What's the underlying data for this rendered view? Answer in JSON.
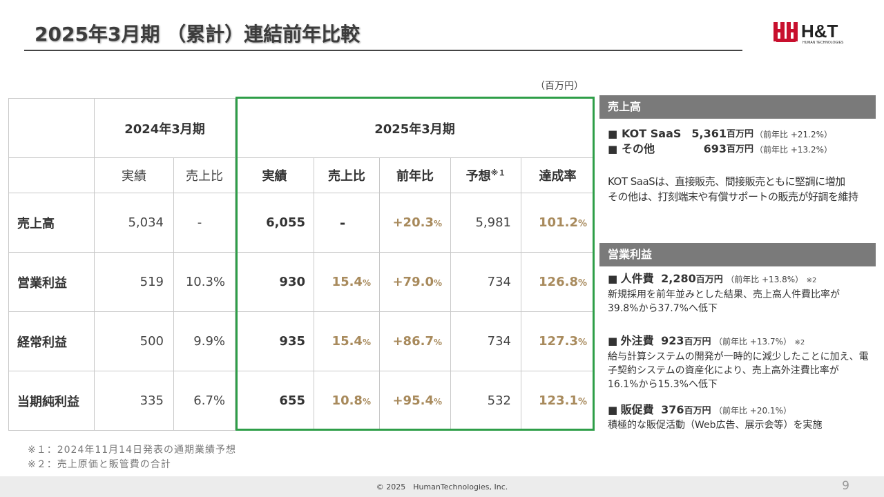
{
  "title": "2025年3月期 （累計）連結前年比較",
  "logo": {
    "text": "H&T",
    "sub": "HUMAN TECHNOLOGIES"
  },
  "unit": "（百万円）",
  "table": {
    "year_prev": "2024年3月期",
    "year_curr": "2025年3月期",
    "sub": {
      "actual": "実績",
      "ratio": "売上比",
      "actual2": "実績",
      "ratio2": "売上比",
      "yoy": "前年比",
      "forecast": "予想",
      "forecast_note": "※１",
      "achieve": "達成率"
    },
    "rows": [
      {
        "label": "売上高",
        "prev_actual": "5,034",
        "prev_ratio": "-",
        "actual": "6,055",
        "ratio": "-",
        "ratio_pct": "",
        "yoy": "+20.3",
        "yoy_pct": "%",
        "forecast": "5,981",
        "achieve": "101.2",
        "achieve_pct": "%"
      },
      {
        "label": "営業利益",
        "prev_actual": "519",
        "prev_ratio": "10.3%",
        "actual": "930",
        "ratio": "15.4",
        "ratio_pct": "%",
        "yoy": "+79.0",
        "yoy_pct": "%",
        "forecast": "734",
        "achieve": "126.8",
        "achieve_pct": "%"
      },
      {
        "label": "経常利益",
        "prev_actual": "500",
        "prev_ratio": "9.9%",
        "actual": "935",
        "ratio": "15.4",
        "ratio_pct": "%",
        "yoy": "+86.7",
        "yoy_pct": "%",
        "forecast": "734",
        "achieve": "127.3",
        "achieve_pct": "%"
      },
      {
        "label": "当期純利益",
        "prev_actual": "335",
        "prev_ratio": "6.7%",
        "actual": "655",
        "ratio": "10.8",
        "ratio_pct": "%",
        "yoy": "+95.4",
        "yoy_pct": "%",
        "forecast": "532",
        "achieve": "123.1",
        "achieve_pct": "%"
      }
    ]
  },
  "footnotes": {
    "n1": "※１：2024年11月14日発表の通期業績予想",
    "n2": "※２：売上原価と販管費の合計"
  },
  "sales_panel": {
    "header": "売上高",
    "items": [
      {
        "bullet": "■",
        "name": "KOT SaaS",
        "value": "5,361",
        "unit": "百万円",
        "yoy": "（前年比 +21.2%）"
      },
      {
        "bullet": "■",
        "name": "その他",
        "value": "693",
        "unit": "百万円",
        "yoy": "（前年比 +13.2%）"
      }
    ],
    "desc1": "KOT SaaSは、直接販売、間接販売ともに堅調に増加",
    "desc2": "その他は、打刻端末や有償サポートの販売が好調を維持"
  },
  "op_panel": {
    "header": "営業利益",
    "items": [
      {
        "bullet": "■",
        "name": "人件費",
        "value": "2,280",
        "unit": "百万円",
        "yoy": "（前年比 +13.8%）",
        "note": "※2",
        "desc": [
          "新規採用を前年並みとした結果、売上高人件費比率が",
          "39.8%から37.7%へ低下"
        ]
      },
      {
        "bullet": "■",
        "name": "外注費",
        "value": "923",
        "unit": "百万円",
        "yoy": "（前年比 +13.7%）",
        "note": "※2",
        "desc": [
          "給与計算システムの開発が一時的に減少したことに加え、電",
          "子契約システムの資産化により、売上高外注費比率が",
          "16.1%から15.3%へ低下"
        ]
      },
      {
        "bullet": "■",
        "name": "販促費",
        "value": "376",
        "unit": "百万円",
        "yoy": "（前年比 +20.1%）",
        "note": "",
        "desc": [
          "積極的な販促活動（Web広告、展示会等）を実施"
        ]
      }
    ]
  },
  "footer": {
    "copyright": "© 2025　HumanTechnologies, Inc.",
    "page": "9"
  },
  "colors": {
    "green_border": "#2e9e48",
    "gold": "#a88a5c",
    "panel_header": "#7a7a7a",
    "logo_red": "#c8102e"
  }
}
